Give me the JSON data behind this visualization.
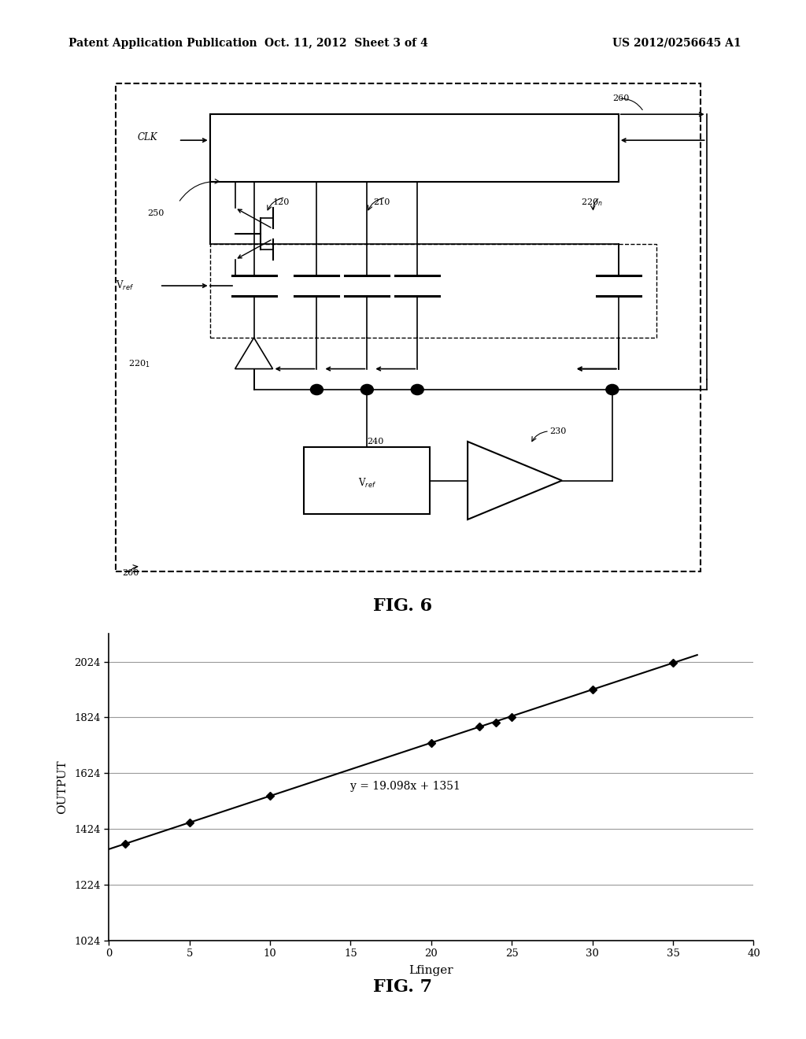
{
  "page_title_left": "Patent Application Publication",
  "page_title_mid": "Oct. 11, 2012  Sheet 3 of 4",
  "page_title_right": "US 2012/0256645 A1",
  "fig6_label": "FIG. 6",
  "fig7_label": "FIG. 7",
  "graph_xlabel": "Lfinger",
  "graph_ylabel": "OUTPUT",
  "graph_equation": "y = 19.098x + 1351",
  "graph_xlim": [
    0,
    40
  ],
  "graph_ylim": [
    1024,
    2124
  ],
  "graph_xticks": [
    0,
    5,
    10,
    15,
    20,
    25,
    30,
    35,
    40
  ],
  "graph_yticks": [
    1024,
    1224,
    1424,
    1624,
    1824,
    2024
  ],
  "data_points_x": [
    1,
    5,
    10,
    20,
    23,
    24,
    25,
    30,
    35
  ],
  "data_points_y": [
    1370,
    1446,
    1542,
    1732,
    1790,
    1805,
    1824,
    1923,
    2020
  ],
  "bg_color": "#ffffff",
  "line_color": "#000000",
  "marker_color": "#000000",
  "text_color": "#000000"
}
